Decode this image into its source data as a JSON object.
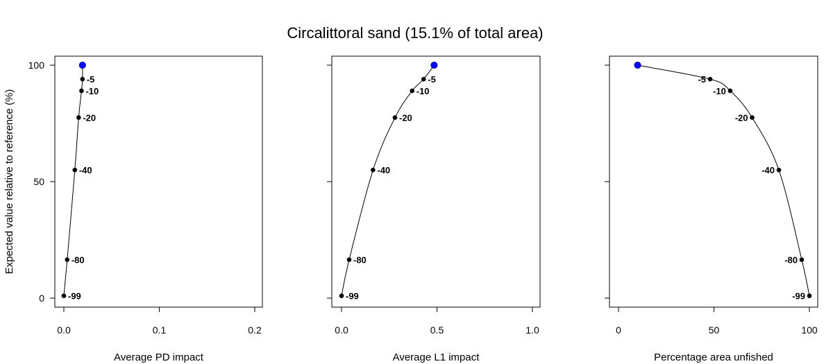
{
  "title": "Circalittoral sand (15.1% of total area)",
  "ylabel": "Expected value relative to reference (%)",
  "chart_data": [
    {
      "type": "line",
      "xlabel": "Average PD impact",
      "xlim": [
        0,
        0.2
      ],
      "xticks": [
        0,
        0.1,
        0.2
      ],
      "xtick_labels": [
        "0.0",
        "0.1",
        "0.2"
      ],
      "ylim": [
        0,
        100
      ],
      "yticks": [
        0,
        50,
        100
      ],
      "ytick_labels": [
        "0",
        "50",
        "100"
      ],
      "reference": {
        "x": 0.0195,
        "y": 100,
        "color": "#0000ff"
      },
      "points": [
        {
          "label": "-5",
          "x": 0.0195,
          "y": 94
        },
        {
          "label": "-10",
          "x": 0.0185,
          "y": 89
        },
        {
          "label": "-20",
          "x": 0.0155,
          "y": 77.5
        },
        {
          "label": "-40",
          "x": 0.0115,
          "y": 55
        },
        {
          "label": "-80",
          "x": 0.0035,
          "y": 16.5
        },
        {
          "label": "-99",
          "x": 0.0,
          "y": 1
        }
      ]
    },
    {
      "type": "line",
      "xlabel": "Average L1 impact",
      "xlim": [
        0,
        1.0
      ],
      "xticks": [
        0,
        0.5,
        1.0
      ],
      "xtick_labels": [
        "0.0",
        "0.5",
        "1.0"
      ],
      "ylim": [
        0,
        100
      ],
      "yticks": [
        0,
        50,
        100
      ],
      "ytick_labels": [
        "0",
        "50",
        "100"
      ],
      "reference": {
        "x": 0.485,
        "y": 100,
        "color": "#0000ff"
      },
      "points": [
        {
          "label": "-5",
          "x": 0.43,
          "y": 94
        },
        {
          "label": "-10",
          "x": 0.37,
          "y": 89
        },
        {
          "label": "-20",
          "x": 0.28,
          "y": 77.5
        },
        {
          "label": "-40",
          "x": 0.165,
          "y": 55
        },
        {
          "label": "-80",
          "x": 0.04,
          "y": 16.5
        },
        {
          "label": "-99",
          "x": 0.0,
          "y": 1
        }
      ]
    },
    {
      "type": "line",
      "xlabel": "Percentage area unfished",
      "xlim": [
        0,
        100
      ],
      "xticks": [
        0,
        50,
        100
      ],
      "xtick_labels": [
        "0",
        "50",
        "100"
      ],
      "ylim": [
        0,
        100
      ],
      "yticks": [
        0,
        50,
        100
      ],
      "ytick_labels": [
        "0",
        "50",
        "100"
      ],
      "reference": {
        "x": 10,
        "y": 100,
        "color": "#0000ff"
      },
      "points": [
        {
          "label": "-5",
          "x": 48,
          "y": 94
        },
        {
          "label": "-10",
          "x": 58.5,
          "y": 89
        },
        {
          "label": "-20",
          "x": 70,
          "y": 77.5
        },
        {
          "label": "-40",
          "x": 84,
          "y": 55
        },
        {
          "label": "-80",
          "x": 96,
          "y": 16.5
        },
        {
          "label": "-99",
          "x": 100,
          "y": 1
        }
      ]
    }
  ]
}
